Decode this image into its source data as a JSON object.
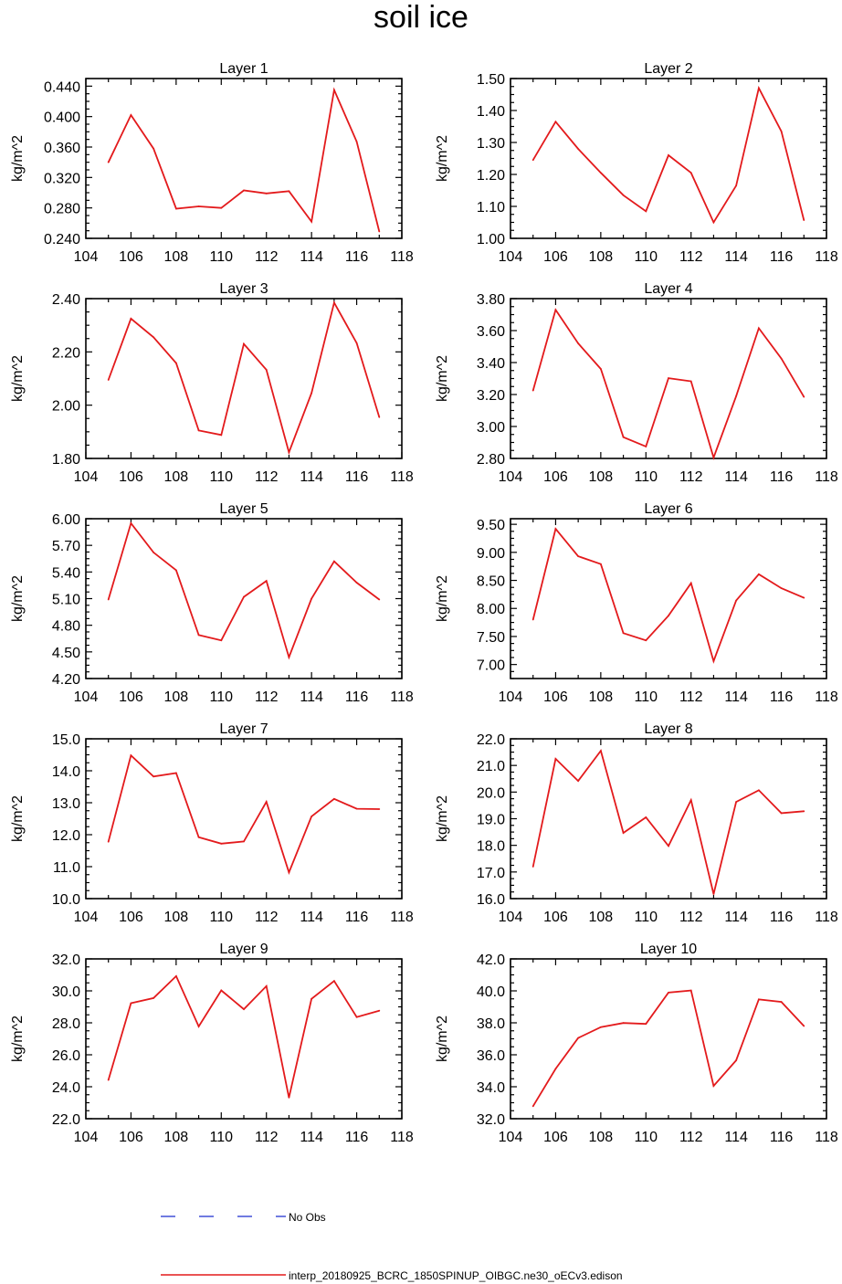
{
  "figure_title": "soil ice",
  "chart_data": [
    {
      "type": "line",
      "title": "Layer 1",
      "ylabel": "kg/m^2",
      "x": [
        105,
        106,
        107,
        108,
        109,
        110,
        111,
        112,
        113,
        114,
        115,
        116,
        117
      ],
      "values": [
        0.34,
        0.402,
        0.358,
        0.279,
        0.282,
        0.28,
        0.303,
        0.299,
        0.302,
        0.262,
        0.435,
        0.367,
        0.249
      ],
      "xlim": [
        104,
        118
      ],
      "ylim": [
        0.24,
        0.45
      ],
      "xticks": [
        "104",
        "106",
        "108",
        "110",
        "112",
        "114",
        "116",
        "118"
      ],
      "yticks": [
        0.24,
        0.28,
        0.32,
        0.36,
        0.4,
        0.44
      ],
      "ytick_labels": [
        "0.240",
        "0.280",
        "0.320",
        "0.360",
        "0.400",
        "0.440"
      ]
    },
    {
      "type": "line",
      "title": "Layer 2",
      "ylabel": "kg/m^2",
      "x": [
        105,
        106,
        107,
        108,
        109,
        110,
        111,
        112,
        113,
        114,
        115,
        116,
        117
      ],
      "values": [
        1.245,
        1.365,
        1.28,
        1.205,
        1.135,
        1.085,
        1.26,
        1.205,
        1.05,
        1.165,
        1.47,
        1.335,
        1.057
      ],
      "xlim": [
        104,
        118
      ],
      "ylim": [
        1.0,
        1.5
      ],
      "xticks": [
        "104",
        "106",
        "108",
        "110",
        "112",
        "114",
        "116",
        "118"
      ],
      "yticks": [
        1.0,
        1.1,
        1.2,
        1.3,
        1.4,
        1.5
      ],
      "ytick_labels": [
        "1.00",
        "1.10",
        "1.20",
        "1.30",
        "1.40",
        "1.50"
      ]
    },
    {
      "type": "line",
      "title": "Layer 3",
      "ylabel": "kg/m^2",
      "x": [
        105,
        106,
        107,
        108,
        109,
        110,
        111,
        112,
        113,
        114,
        115,
        116,
        117
      ],
      "values": [
        2.095,
        2.325,
        2.255,
        2.158,
        1.905,
        1.888,
        2.23,
        2.133,
        1.823,
        2.045,
        2.385,
        2.233,
        1.955
      ],
      "xlim": [
        104,
        118
      ],
      "ylim": [
        1.8,
        2.4
      ],
      "xticks": [
        "104",
        "106",
        "108",
        "110",
        "112",
        "114",
        "116",
        "118"
      ],
      "yticks": [
        1.8,
        2.0,
        2.2,
        2.4
      ],
      "ytick_labels": [
        "1.80",
        "2.00",
        "2.20",
        "2.40"
      ]
    },
    {
      "type": "line",
      "title": "Layer 4",
      "ylabel": "kg/m^2",
      "x": [
        105,
        106,
        107,
        108,
        109,
        110,
        111,
        112,
        113,
        114,
        115,
        116,
        117
      ],
      "values": [
        3.225,
        3.73,
        3.52,
        3.36,
        2.933,
        2.875,
        3.302,
        3.283,
        2.805,
        3.19,
        3.615,
        3.425,
        3.185
      ],
      "xlim": [
        104,
        118
      ],
      "ylim": [
        2.8,
        3.8
      ],
      "xticks": [
        "104",
        "106",
        "108",
        "110",
        "112",
        "114",
        "116",
        "118"
      ],
      "yticks": [
        2.8,
        3.0,
        3.2,
        3.4,
        3.6,
        3.8
      ],
      "ytick_labels": [
        "2.80",
        "3.00",
        "3.20",
        "3.40",
        "3.60",
        "3.80"
      ]
    },
    {
      "type": "line",
      "title": "Layer 5",
      "ylabel": "kg/m^2",
      "x": [
        105,
        106,
        107,
        108,
        109,
        110,
        111,
        112,
        113,
        114,
        115,
        116,
        117
      ],
      "values": [
        5.09,
        5.95,
        5.62,
        5.42,
        4.69,
        4.63,
        5.12,
        5.3,
        4.44,
        5.1,
        5.52,
        5.28,
        5.09
      ],
      "xlim": [
        104,
        118
      ],
      "ylim": [
        4.2,
        6.0
      ],
      "xticks": [
        "104",
        "106",
        "108",
        "110",
        "112",
        "114",
        "116",
        "118"
      ],
      "yticks": [
        4.2,
        4.5,
        4.8,
        5.1,
        5.4,
        5.7,
        6.0
      ],
      "ytick_labels": [
        "4.20",
        "4.50",
        "4.80",
        "5.10",
        "5.40",
        "5.70",
        "6.00"
      ]
    },
    {
      "type": "line",
      "title": "Layer 6",
      "ylabel": "kg/m^2",
      "x": [
        105,
        106,
        107,
        108,
        109,
        110,
        111,
        112,
        113,
        114,
        115,
        116,
        117
      ],
      "values": [
        7.8,
        9.42,
        8.93,
        8.79,
        7.56,
        7.43,
        7.87,
        8.45,
        7.06,
        8.14,
        8.61,
        8.36,
        8.19
      ],
      "xlim": [
        104,
        118
      ],
      "ylim": [
        6.75,
        9.6
      ],
      "xticks": [
        "104",
        "106",
        "108",
        "110",
        "112",
        "114",
        "116",
        "118"
      ],
      "yticks": [
        7.0,
        7.5,
        8.0,
        8.5,
        9.0,
        9.5
      ],
      "ytick_labels": [
        "7.00",
        "7.50",
        "8.00",
        "8.50",
        "9.00",
        "9.50"
      ]
    },
    {
      "type": "line",
      "title": "Layer 7",
      "ylabel": "kg/m^2",
      "x": [
        105,
        106,
        107,
        108,
        109,
        110,
        111,
        112,
        113,
        114,
        115,
        116,
        117
      ],
      "values": [
        11.78,
        14.48,
        13.82,
        13.93,
        11.92,
        11.72,
        11.79,
        13.03,
        10.82,
        12.57,
        13.12,
        12.81,
        12.8
      ],
      "xlim": [
        104,
        118
      ],
      "ylim": [
        10.0,
        15.0
      ],
      "xticks": [
        "104",
        "106",
        "108",
        "110",
        "112",
        "114",
        "116",
        "118"
      ],
      "yticks": [
        10.0,
        11.0,
        12.0,
        13.0,
        14.0,
        15.0
      ],
      "ytick_labels": [
        "10.0",
        "11.0",
        "12.0",
        "13.0",
        "14.0",
        "15.0"
      ]
    },
    {
      "type": "line",
      "title": "Layer 8",
      "ylabel": "kg/m^2",
      "x": [
        105,
        106,
        107,
        108,
        109,
        110,
        111,
        112,
        113,
        114,
        115,
        116,
        117
      ],
      "values": [
        17.2,
        21.25,
        20.42,
        21.55,
        18.47,
        19.05,
        17.98,
        19.7,
        16.17,
        19.63,
        20.07,
        19.21,
        19.28
      ],
      "xlim": [
        104,
        118
      ],
      "ylim": [
        16.0,
        22.0
      ],
      "xticks": [
        "104",
        "106",
        "108",
        "110",
        "112",
        "114",
        "116",
        "118"
      ],
      "yticks": [
        16.0,
        17.0,
        18.0,
        19.0,
        20.0,
        21.0,
        22.0
      ],
      "ytick_labels": [
        "16.0",
        "17.0",
        "18.0",
        "19.0",
        "20.0",
        "21.0",
        "22.0"
      ]
    },
    {
      "type": "line",
      "title": "Layer 9",
      "ylabel": "kg/m^2",
      "x": [
        105,
        106,
        107,
        108,
        109,
        110,
        111,
        112,
        113,
        114,
        115,
        116,
        117
      ],
      "values": [
        24.42,
        29.23,
        29.55,
        30.92,
        27.77,
        30.03,
        28.85,
        30.3,
        23.32,
        29.5,
        30.62,
        28.36,
        28.76
      ],
      "xlim": [
        104,
        118
      ],
      "ylim": [
        22.0,
        32.0
      ],
      "xticks": [
        "104",
        "106",
        "108",
        "110",
        "112",
        "114",
        "116",
        "118"
      ],
      "yticks": [
        22.0,
        24.0,
        26.0,
        28.0,
        30.0,
        32.0
      ],
      "ytick_labels": [
        "22.0",
        "24.0",
        "26.0",
        "28.0",
        "30.0",
        "32.0"
      ]
    },
    {
      "type": "line",
      "title": "Layer 10",
      "ylabel": "kg/m^2",
      "x": [
        105,
        106,
        107,
        108,
        109,
        110,
        111,
        112,
        113,
        114,
        115,
        116,
        117
      ],
      "values": [
        32.78,
        35.12,
        37.05,
        37.73,
        37.99,
        37.93,
        39.89,
        40.02,
        34.05,
        35.65,
        39.47,
        39.31,
        37.8
      ],
      "xlim": [
        104,
        118
      ],
      "ylim": [
        32.0,
        42.0
      ],
      "xticks": [
        "104",
        "106",
        "108",
        "110",
        "112",
        "114",
        "116",
        "118"
      ],
      "yticks": [
        32.0,
        34.0,
        36.0,
        38.0,
        40.0,
        42.0
      ],
      "ytick_labels": [
        "32.0",
        "34.0",
        "36.0",
        "38.0",
        "40.0",
        "42.0"
      ]
    }
  ],
  "legend": {
    "items": [
      {
        "label": "No Obs",
        "color": "#1a2ccf",
        "style": "dashed"
      },
      {
        "label": "interp_20180925_BCRC_1850SPINUP_OIBGC.ne30_oECv3.edison",
        "color": "#e31a1c",
        "style": "solid"
      }
    ]
  },
  "colors": {
    "series": "#e31a1c",
    "axes": "#000000"
  }
}
